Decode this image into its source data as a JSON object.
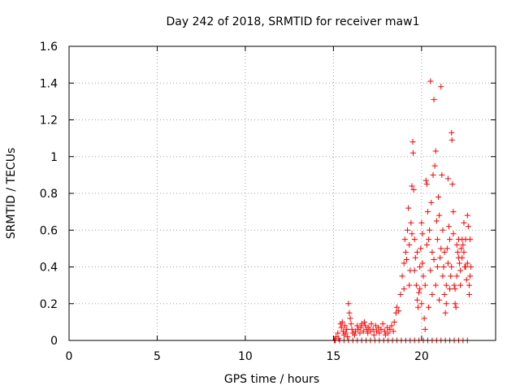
{
  "chart_data": {
    "type": "scatter",
    "title": "Day 242 of 2018, SRMTID for receiver maw1",
    "xlabel": "GPS time / hours",
    "ylabel": "SRMTID / TECUs",
    "xlim": [
      0,
      24.2
    ],
    "ylim": [
      0,
      1.6
    ],
    "xticks": [
      "0",
      "5",
      "10",
      "15",
      "20"
    ],
    "xtick_values": [
      0,
      5,
      10,
      15,
      20
    ],
    "yticks": [
      "0",
      "0.2",
      "0.4",
      "0.6",
      "0.8",
      "1",
      "1.2",
      "1.4",
      "1.6"
    ],
    "ytick_values": [
      0,
      0.2,
      0.4,
      0.6,
      0.8,
      1.0,
      1.2,
      1.4,
      1.6
    ],
    "grid": true,
    "marker": "plus",
    "series": [
      {
        "name": "SRMTID",
        "color": "#ff0000",
        "points": [
          [
            15.05,
            0.0
          ],
          [
            15.15,
            0.02
          ],
          [
            15.25,
            0.04
          ],
          [
            15.3,
            0.01
          ],
          [
            15.4,
            0.09
          ],
          [
            15.45,
            0.07
          ],
          [
            15.5,
            0.1
          ],
          [
            15.55,
            0.05
          ],
          [
            15.6,
            0.03
          ],
          [
            15.65,
            0.08
          ],
          [
            15.7,
            0.04
          ],
          [
            15.75,
            0.06
          ],
          [
            15.8,
            0.02
          ],
          [
            15.85,
            0.2
          ],
          [
            15.9,
            0.15
          ],
          [
            15.95,
            0.12
          ],
          [
            16.0,
            0.09
          ],
          [
            16.05,
            0.06
          ],
          [
            16.1,
            0.04
          ],
          [
            16.2,
            0.03
          ],
          [
            16.25,
            0.05
          ],
          [
            16.35,
            0.08
          ],
          [
            16.4,
            0.06
          ],
          [
            16.5,
            0.04
          ],
          [
            16.55,
            0.07
          ],
          [
            16.6,
            0.09
          ],
          [
            16.7,
            0.05
          ],
          [
            16.75,
            0.1
          ],
          [
            16.8,
            0.08
          ],
          [
            16.9,
            0.06
          ],
          [
            16.95,
            0.04
          ],
          [
            17.0,
            0.07
          ],
          [
            17.1,
            0.05
          ],
          [
            17.15,
            0.09
          ],
          [
            17.25,
            0.06
          ],
          [
            17.3,
            0.03
          ],
          [
            17.4,
            0.08
          ],
          [
            17.45,
            0.05
          ],
          [
            17.55,
            0.07
          ],
          [
            17.6,
            0.04
          ],
          [
            17.7,
            0.06
          ],
          [
            17.8,
            0.09
          ],
          [
            17.9,
            0.05
          ],
          [
            17.95,
            0.03
          ],
          [
            18.05,
            0.07
          ],
          [
            18.1,
            0.04
          ],
          [
            18.2,
            0.06
          ],
          [
            18.3,
            0.08
          ],
          [
            18.4,
            0.05
          ],
          [
            18.45,
            0.1
          ],
          [
            18.55,
            0.15
          ],
          [
            18.6,
            0.18
          ],
          [
            18.7,
            0.16
          ],
          [
            15.1,
            0.0
          ],
          [
            15.35,
            0.0
          ],
          [
            15.6,
            0.0
          ],
          [
            15.85,
            0.0
          ],
          [
            16.1,
            0.0
          ],
          [
            16.35,
            0.0
          ],
          [
            16.6,
            0.0
          ],
          [
            16.85,
            0.0
          ],
          [
            17.1,
            0.0
          ],
          [
            17.35,
            0.0
          ],
          [
            17.6,
            0.0
          ],
          [
            17.85,
            0.0
          ],
          [
            18.1,
            0.0
          ],
          [
            18.35,
            0.0
          ],
          [
            18.6,
            0.0
          ],
          [
            18.85,
            0.0
          ],
          [
            19.1,
            0.0
          ],
          [
            19.35,
            0.0
          ],
          [
            19.6,
            0.0
          ],
          [
            19.85,
            0.0
          ],
          [
            20.1,
            0.0
          ],
          [
            20.35,
            0.0
          ],
          [
            20.6,
            0.0
          ],
          [
            20.85,
            0.0
          ],
          [
            21.1,
            0.0
          ],
          [
            21.35,
            0.0
          ],
          [
            21.6,
            0.0
          ],
          [
            21.85,
            0.0
          ],
          [
            22.1,
            0.0
          ],
          [
            22.35,
            0.0
          ],
          [
            22.6,
            0.0
          ],
          [
            18.8,
            0.25
          ],
          [
            18.9,
            0.35
          ],
          [
            19.0,
            0.42
          ],
          [
            19.05,
            0.55
          ],
          [
            19.1,
            0.48
          ],
          [
            19.2,
            0.6
          ],
          [
            19.25,
            0.72
          ],
          [
            19.3,
            0.52
          ],
          [
            19.35,
            0.38
          ],
          [
            19.4,
            0.64
          ],
          [
            19.45,
            0.84
          ],
          [
            19.5,
            1.08
          ],
          [
            19.52,
            1.02
          ],
          [
            19.55,
            0.82
          ],
          [
            19.6,
            0.55
          ],
          [
            19.65,
            0.45
          ],
          [
            19.7,
            0.3
          ],
          [
            19.75,
            0.22
          ],
          [
            19.8,
            0.18
          ],
          [
            19.85,
            0.26
          ],
          [
            19.9,
            0.4
          ],
          [
            19.95,
            0.5
          ],
          [
            20.0,
            0.64
          ],
          [
            20.05,
            0.58
          ],
          [
            20.1,
            0.35
          ],
          [
            20.15,
            0.12
          ],
          [
            20.2,
            0.06
          ],
          [
            20.25,
            0.87
          ],
          [
            20.3,
            0.85
          ],
          [
            20.35,
            0.7
          ],
          [
            20.4,
            0.55
          ],
          [
            20.45,
            0.6
          ],
          [
            20.5,
            1.41
          ],
          [
            20.55,
            0.75
          ],
          [
            20.6,
            0.48
          ],
          [
            20.65,
            0.9
          ],
          [
            20.7,
            1.31
          ],
          [
            20.75,
            0.95
          ],
          [
            20.8,
            1.03
          ],
          [
            20.85,
            0.65
          ],
          [
            20.9,
            0.55
          ],
          [
            20.95,
            0.78
          ],
          [
            21.0,
            0.68
          ],
          [
            21.05,
            0.45
          ],
          [
            21.1,
            1.38
          ],
          [
            21.15,
            0.9
          ],
          [
            21.2,
            0.6
          ],
          [
            21.25,
            0.4
          ],
          [
            21.3,
            0.25
          ],
          [
            21.35,
            0.15
          ],
          [
            21.4,
            0.3
          ],
          [
            21.45,
            0.5
          ],
          [
            21.5,
            0.88
          ],
          [
            21.55,
            0.62
          ],
          [
            21.6,
            0.55
          ],
          [
            21.65,
            0.35
          ],
          [
            21.7,
            1.13
          ],
          [
            21.72,
            1.09
          ],
          [
            21.75,
            0.85
          ],
          [
            21.8,
            0.7
          ],
          [
            21.85,
            0.3
          ],
          [
            21.9,
            0.2
          ],
          [
            21.95,
            0.18
          ],
          [
            22.0,
            0.35
          ],
          [
            22.05,
            0.48
          ],
          [
            22.1,
            0.55
          ],
          [
            22.15,
            0.42
          ],
          [
            22.2,
            0.3
          ],
          [
            22.25,
            0.5
          ],
          [
            22.3,
            0.45
          ],
          [
            22.35,
            0.52
          ],
          [
            22.4,
            0.64
          ],
          [
            22.45,
            0.4
          ],
          [
            22.5,
            0.55
          ],
          [
            22.55,
            0.33
          ],
          [
            22.6,
            0.68
          ],
          [
            22.65,
            0.62
          ],
          [
            22.7,
            0.25
          ],
          [
            22.75,
            0.35
          ],
          [
            22.8,
            0.4
          ],
          [
            19.0,
            0.28
          ],
          [
            19.15,
            0.44
          ],
          [
            19.3,
            0.3
          ],
          [
            19.45,
            0.58
          ],
          [
            19.6,
            0.38
          ],
          [
            19.75,
            0.48
          ],
          [
            19.9,
            0.28
          ],
          [
            20.0,
            0.2
          ],
          [
            20.05,
            0.42
          ],
          [
            20.2,
            0.3
          ],
          [
            20.3,
            0.52
          ],
          [
            20.4,
            0.18
          ],
          [
            20.5,
            0.38
          ],
          [
            20.6,
            0.25
          ],
          [
            20.7,
            0.44
          ],
          [
            20.8,
            0.3
          ],
          [
            20.9,
            0.4
          ],
          [
            21.0,
            0.22
          ],
          [
            21.1,
            0.5
          ],
          [
            21.2,
            0.35
          ],
          [
            21.3,
            0.48
          ],
          [
            21.4,
            0.2
          ],
          [
            21.5,
            0.42
          ],
          [
            21.6,
            0.28
          ],
          [
            21.7,
            0.4
          ],
          [
            21.8,
            0.58
          ],
          [
            21.9,
            0.28
          ],
          [
            22.0,
            0.52
          ],
          [
            22.1,
            0.45
          ],
          [
            22.2,
            0.38
          ],
          [
            22.3,
            0.55
          ],
          [
            22.4,
            0.48
          ],
          [
            22.5,
            0.4
          ],
          [
            22.6,
            0.42
          ],
          [
            22.7,
            0.3
          ],
          [
            22.75,
            0.55
          ]
        ]
      }
    ]
  }
}
